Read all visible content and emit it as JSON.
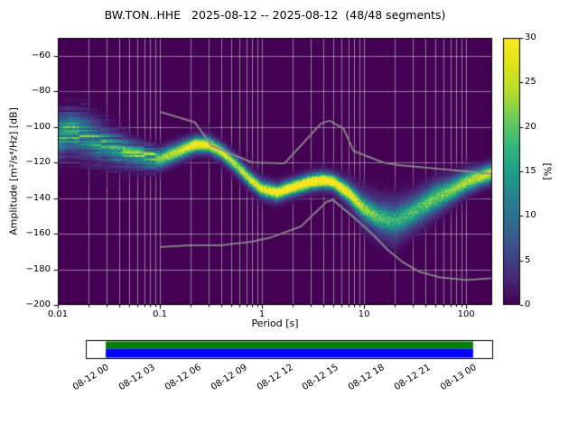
{
  "title": "BW.TON..HHE   2025-08-12 -- 2025-08-12  (48/48 segments)",
  "colors": {
    "plot_background": "#440154",
    "colormap": "viridis",
    "grid": "#d8d8d8",
    "noise_models": "#8c8c8c",
    "coverage_processed_green": "#008000",
    "coverage_used_blue": "#0000ff",
    "spine": "#000000"
  },
  "axes": {
    "x": {
      "label": "Period [s]",
      "scale": "log",
      "min": 0.01,
      "max": 180,
      "ticks": [
        {
          "v": 0.01,
          "label": "0.01"
        },
        {
          "v": 0.1,
          "label": "0.1"
        },
        {
          "v": 1,
          "label": "1"
        },
        {
          "v": 10,
          "label": "10"
        },
        {
          "v": 100,
          "label": "100"
        }
      ]
    },
    "y": {
      "label": "Amplitude [m²/s⁴/Hz] [dB]",
      "min": -200,
      "max": -50,
      "ticks": [
        {
          "v": -60,
          "label": "−60"
        },
        {
          "v": -80,
          "label": "−80"
        },
        {
          "v": -100,
          "label": "−100"
        },
        {
          "v": -120,
          "label": "−120"
        },
        {
          "v": -140,
          "label": "−140"
        },
        {
          "v": -160,
          "label": "−160"
        },
        {
          "v": -180,
          "label": "−180"
        },
        {
          "v": -200,
          "label": "−200"
        }
      ]
    },
    "colorbar": {
      "label": "[%]",
      "min": 0,
      "max": 30,
      "ticks": [
        {
          "v": 0,
          "label": "0"
        },
        {
          "v": 5,
          "label": "5"
        },
        {
          "v": 10,
          "label": "10"
        },
        {
          "v": 15,
          "label": "15"
        },
        {
          "v": 20,
          "label": "20"
        },
        {
          "v": 25,
          "label": "25"
        },
        {
          "v": 30,
          "label": "30"
        }
      ]
    }
  },
  "chart_data": {
    "type": "heatmap",
    "title": "BW.TON..HHE   2025-08-12 -- 2025-08-12  (48/48 segments)",
    "xlabel": "Period [s]",
    "ylabel": "Amplitude [m²/s⁴/Hz] [dB]",
    "colorbar_label": "[%]",
    "x_range_s": [
      0.01,
      180
    ],
    "y_range_db": [
      -200,
      -50
    ],
    "probability_range_pct": [
      0,
      30
    ],
    "psd_band": {
      "description": "PPSD probability ridge: [period_s, center_db, sigma_db, peak_pct, halo_sigma_db, halo_peak_pct]",
      "points": [
        [
          0.01,
          -105,
          6,
          9,
          12,
          4
        ],
        [
          0.013,
          -102,
          5,
          12,
          12,
          4
        ],
        [
          0.018,
          -104,
          5,
          11,
          12,
          4
        ],
        [
          0.025,
          -108,
          5,
          9,
          11,
          4
        ],
        [
          0.035,
          -112,
          4.5,
          10,
          10,
          4
        ],
        [
          0.05,
          -115,
          4,
          13,
          8,
          3
        ],
        [
          0.07,
          -117,
          3.5,
          15,
          7,
          3
        ],
        [
          0.1,
          -118,
          3,
          17,
          6,
          3
        ],
        [
          0.15,
          -114,
          2.8,
          21,
          6,
          3
        ],
        [
          0.22,
          -110,
          2.5,
          27,
          6,
          3
        ],
        [
          0.3,
          -110,
          2.5,
          26,
          6,
          3
        ],
        [
          0.4,
          -114,
          2.5,
          22,
          6,
          3
        ],
        [
          0.55,
          -121,
          2.5,
          20,
          6,
          3
        ],
        [
          0.75,
          -129,
          2.5,
          22,
          6,
          3
        ],
        [
          1.0,
          -135,
          2.5,
          25,
          6,
          3
        ],
        [
          1.4,
          -137,
          2.5,
          27,
          6,
          3
        ],
        [
          2.0,
          -134,
          2.5,
          29,
          6,
          3
        ],
        [
          3.0,
          -131,
          2.5,
          30,
          6,
          3
        ],
        [
          4.0,
          -130,
          2.5,
          30,
          6,
          3
        ],
        [
          5.0,
          -131,
          2.5,
          28,
          6,
          3
        ],
        [
          7.0,
          -137,
          3,
          24,
          7,
          4
        ],
        [
          10,
          -146,
          3.5,
          17,
          9,
          5
        ],
        [
          14,
          -151,
          4,
          13,
          10,
          5
        ],
        [
          20,
          -153,
          4.5,
          11,
          11,
          5
        ],
        [
          30,
          -148,
          4.5,
          13,
          10,
          4
        ],
        [
          50,
          -140,
          4.5,
          15,
          9,
          4
        ],
        [
          70,
          -136,
          4,
          17,
          8,
          3
        ],
        [
          100,
          -131,
          3.5,
          19,
          7,
          3
        ],
        [
          140,
          -128,
          3,
          21,
          6,
          3
        ],
        [
          175,
          -126,
          3,
          22,
          6,
          3
        ]
      ]
    },
    "noise_models": {
      "nhnm": [
        [
          0.1,
          -91.5
        ],
        [
          0.22,
          -97.4
        ],
        [
          0.32,
          -110.5
        ],
        [
          0.8,
          -120
        ],
        [
          1.66,
          -120.5
        ],
        [
          3.8,
          -98.1
        ],
        [
          4.6,
          -96.5
        ],
        [
          6.3,
          -101
        ],
        [
          7.9,
          -113.5
        ],
        [
          15.4,
          -120
        ],
        [
          22,
          -121.5
        ],
        [
          35,
          -122.5
        ],
        [
          60,
          -123.8
        ],
        [
          100,
          -125
        ],
        [
          180,
          -126.5
        ]
      ],
      "nlnm": [
        [
          0.1,
          -167.5
        ],
        [
          0.2,
          -166.5
        ],
        [
          0.4,
          -166.5
        ],
        [
          0.8,
          -164.5
        ],
        [
          1.24,
          -162
        ],
        [
          2.4,
          -156
        ],
        [
          4.3,
          -142
        ],
        [
          5,
          -141.2
        ],
        [
          6,
          -145
        ],
        [
          8,
          -151
        ],
        [
          10,
          -156
        ],
        [
          13,
          -162
        ],
        [
          17,
          -169
        ],
        [
          24,
          -176
        ],
        [
          35,
          -181.5
        ],
        [
          55,
          -184.5
        ],
        [
          100,
          -186
        ],
        [
          180,
          -185
        ]
      ]
    }
  },
  "timeline": {
    "labels": [
      "08-12 00",
      "08-12 03",
      "08-12 06",
      "08-12 09",
      "08-12 12",
      "08-12 15",
      "08-12 18",
      "08-12 21",
      "08-13 00"
    ],
    "coverage": {
      "start": "08-12 00",
      "end": "08-13 00"
    }
  }
}
